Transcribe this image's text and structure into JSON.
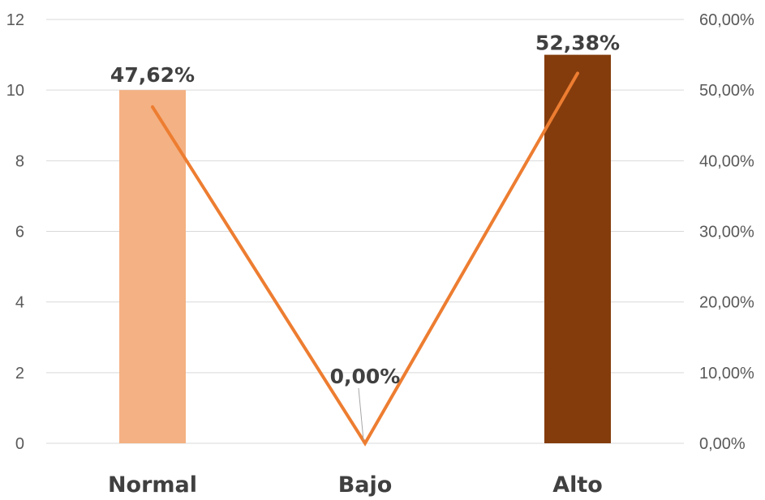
{
  "chart_data": {
    "type": "bar",
    "categories": [
      "Normal",
      "Bajo",
      "Alto"
    ],
    "series": [
      {
        "type": "bar",
        "axis": "left",
        "values": [
          10,
          0,
          11
        ],
        "colors": [
          "#f4b183",
          "#f4b183",
          "#843c0c"
        ]
      },
      {
        "type": "line",
        "axis": "right",
        "values": [
          47.62,
          0.0,
          52.38
        ],
        "data_labels": [
          "47,62%",
          "0,00%",
          "52,38%"
        ],
        "color": "#ed7d31"
      }
    ],
    "left_axis": {
      "ylim": [
        0,
        12
      ],
      "ticks": [
        0,
        2,
        4,
        6,
        8,
        10,
        12
      ],
      "tick_labels": [
        "0",
        "2",
        "4",
        "6",
        "8",
        "10",
        "12"
      ]
    },
    "right_axis": {
      "ylim": [
        0,
        60
      ],
      "ticks": [
        0,
        10,
        20,
        30,
        40,
        50,
        60
      ],
      "tick_labels": [
        "0,00%",
        "10,00%",
        "20,00%",
        "30,00%",
        "40,00%",
        "50,00%",
        "60,00%"
      ]
    },
    "grid": true,
    "legend": "none"
  }
}
